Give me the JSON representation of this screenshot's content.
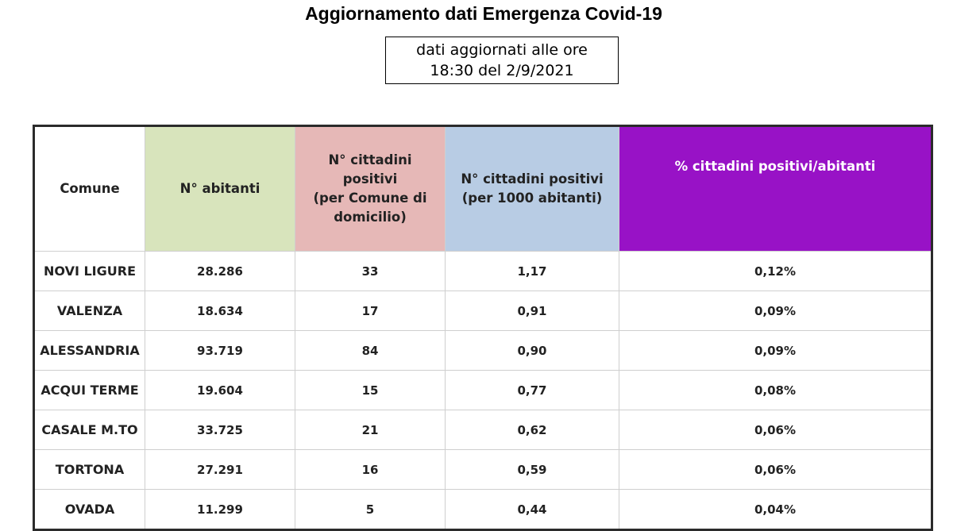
{
  "title": "Aggiornamento dati Emergenza Covid-19",
  "updated": {
    "line1": "dati aggiornati alle ore",
    "line2": "18:30 del 2/9/2021"
  },
  "table": {
    "headers": {
      "comune": "Comune",
      "abitanti": "N° abitanti",
      "positivi": [
        "N° cittadini",
        "positivi",
        "(per Comune di",
        "domicilio)"
      ],
      "per1000": [
        "N° cittadini positivi",
        "(per 1000 abitanti)"
      ],
      "perc": "% cittadini positivi/abitanti"
    },
    "rows": [
      {
        "comune": "NOVI LIGURE",
        "abitanti": "28.286",
        "positivi": "33",
        "per1000": "1,17",
        "perc": "0,12%"
      },
      {
        "comune": "VALENZA",
        "abitanti": "18.634",
        "positivi": "17",
        "per1000": "0,91",
        "perc": "0,09%"
      },
      {
        "comune": "ALESSANDRIA",
        "abitanti": "93.719",
        "positivi": "84",
        "per1000": "0,90",
        "perc": "0,09%"
      },
      {
        "comune": "ACQUI TERME",
        "abitanti": "19.604",
        "positivi": "15",
        "per1000": "0,77",
        "perc": "0,08%"
      },
      {
        "comune": "CASALE M.TO",
        "abitanti": "33.725",
        "positivi": "21",
        "per1000": "0,62",
        "perc": "0,06%"
      },
      {
        "comune": "TORTONA",
        "abitanti": "27.291",
        "positivi": "16",
        "per1000": "0,59",
        "perc": "0,06%"
      },
      {
        "comune": "OVADA",
        "abitanti": "11.299",
        "positivi": "5",
        "per1000": "0,44",
        "perc": "0,04%"
      }
    ]
  },
  "colors": {
    "abitanti_header": "#d8e4bc",
    "positivi_header": "#e6b8b7",
    "per1000_header": "#b8cce4",
    "perc_header": "#9812c6"
  }
}
